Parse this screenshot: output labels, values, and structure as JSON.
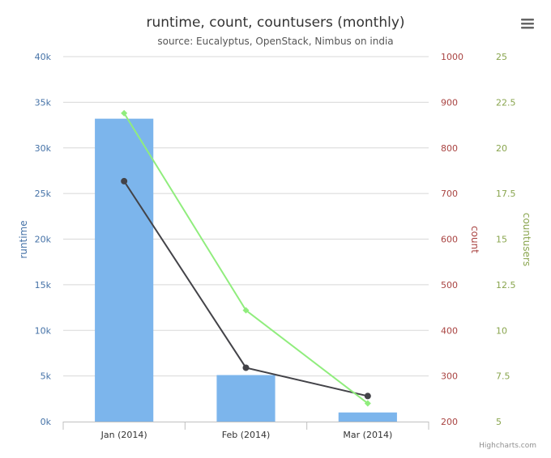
{
  "chart_data": {
    "type": "bar",
    "title": "runtime, count, countusers (monthly)",
    "subtitle": "source: Eucalyptus, OpenStack, Nimbus on india",
    "categories": [
      "Jan (2014)",
      "Feb (2014)",
      "Mar (2014)"
    ],
    "axes": {
      "runtime": {
        "label": "runtime",
        "min": 0,
        "max": 40000,
        "ticks": [
          0,
          5000,
          10000,
          15000,
          20000,
          25000,
          30000,
          35000,
          40000
        ],
        "tick_labels": [
          "0k",
          "5k",
          "10k",
          "15k",
          "20k",
          "25k",
          "30k",
          "35k",
          "40k"
        ],
        "color": "#4572a7"
      },
      "count": {
        "label": "count",
        "min": 200,
        "max": 1000,
        "ticks": [
          200,
          300,
          400,
          500,
          600,
          700,
          800,
          900,
          1000
        ],
        "tick_labels": [
          "200",
          "300",
          "400",
          "500",
          "600",
          "700",
          "800",
          "900",
          "1000"
        ],
        "color": "#a94442"
      },
      "countusers": {
        "label": "countusers",
        "min": 5,
        "max": 25,
        "ticks": [
          5,
          7.5,
          10,
          12.5,
          15,
          17.5,
          20,
          22.5,
          25
        ],
        "tick_labels": [
          "5",
          "7.5",
          "10",
          "12.5",
          "15",
          "17.5",
          "20",
          "22.5",
          "25"
        ],
        "color": "#89a54e"
      }
    },
    "series": [
      {
        "type": "bar",
        "axis": "runtime",
        "values": [
          33200,
          5100,
          1000
        ],
        "color": "#7cb5ec"
      },
      {
        "type": "line",
        "axis": "count",
        "values": [
          727,
          318,
          256
        ],
        "color": "#434348"
      },
      {
        "type": "line",
        "axis": "countusers",
        "values": [
          21.9,
          11.1,
          6.0
        ],
        "color": "#90ed7d"
      }
    ],
    "grid": true
  },
  "credits": "Highcharts.com",
  "menu_icon": "hamburger-menu-icon"
}
